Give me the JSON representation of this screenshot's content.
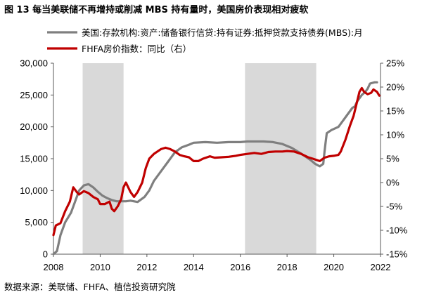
{
  "figure": {
    "title": "图 13 每当美联储不再增持或削减 MBS 持有量时，美国房价表现相对疲软",
    "source": "数据来源：美联储、FHFA、植信投资研究院"
  },
  "chart_data": {
    "type": "line",
    "legend": {
      "position": "top-left"
    },
    "grid": false,
    "x": {
      "type": "year",
      "range": [
        2008,
        2022
      ],
      "ticks": [
        "2008",
        "2010",
        "2012",
        "2014",
        "2016",
        "2018",
        "2020",
        "2022"
      ]
    },
    "y_left": {
      "range": [
        0,
        30000
      ],
      "ticks": [
        "0",
        "5,000",
        "10,000",
        "15,000",
        "20,000",
        "25,000",
        "30,000"
      ]
    },
    "y_right": {
      "range": [
        -15,
        25
      ],
      "ticks": [
        "-15%",
        "-10%",
        "-5%",
        "0%",
        "5%",
        "10%",
        "15%",
        "20%",
        "25%"
      ]
    },
    "shaded_periods": [
      [
        2009.25,
        2011.0
      ],
      [
        2016.2,
        2019.25
      ]
    ],
    "series": [
      {
        "name": "美国:存款机构:资产:储备银行信贷:持有证券:抵押贷款支持债券(MBS):月",
        "axis": "left",
        "color": "#7f7f7f",
        "points": [
          [
            2008.0,
            0
          ],
          [
            2008.15,
            500
          ],
          [
            2008.3,
            3000
          ],
          [
            2008.5,
            5000
          ],
          [
            2008.75,
            6500
          ],
          [
            2008.9,
            8000
          ],
          [
            2009.1,
            10000
          ],
          [
            2009.3,
            10800
          ],
          [
            2009.5,
            11000
          ],
          [
            2009.7,
            10500
          ],
          [
            2009.9,
            9800
          ],
          [
            2010.1,
            9200
          ],
          [
            2010.3,
            8800
          ],
          [
            2010.5,
            8500
          ],
          [
            2010.7,
            8300
          ],
          [
            2010.9,
            8300
          ],
          [
            2011.1,
            8300
          ],
          [
            2011.3,
            8400
          ],
          [
            2011.6,
            8200
          ],
          [
            2011.9,
            9000
          ],
          [
            2012.1,
            10000
          ],
          [
            2012.3,
            11500
          ],
          [
            2012.6,
            13000
          ],
          [
            2012.9,
            14500
          ],
          [
            2013.2,
            16000
          ],
          [
            2013.5,
            16800
          ],
          [
            2013.8,
            17200
          ],
          [
            2014.0,
            17500
          ],
          [
            2014.5,
            17600
          ],
          [
            2015.0,
            17500
          ],
          [
            2015.5,
            17600
          ],
          [
            2016.0,
            17600
          ],
          [
            2016.3,
            17700
          ],
          [
            2016.7,
            17700
          ],
          [
            2017.0,
            17700
          ],
          [
            2017.4,
            17600
          ],
          [
            2017.8,
            17300
          ],
          [
            2018.2,
            16700
          ],
          [
            2018.6,
            15800
          ],
          [
            2019.0,
            14800
          ],
          [
            2019.2,
            14200
          ],
          [
            2019.4,
            13800
          ],
          [
            2019.55,
            14200
          ],
          [
            2019.6,
            16000
          ],
          [
            2019.65,
            17500
          ],
          [
            2019.7,
            19000
          ],
          [
            2019.9,
            19500
          ],
          [
            2020.2,
            20000
          ],
          [
            2020.4,
            21000
          ],
          [
            2020.6,
            22000
          ],
          [
            2020.8,
            23000
          ],
          [
            2020.9,
            23200
          ],
          [
            2021.0,
            24000
          ],
          [
            2021.2,
            25000
          ],
          [
            2021.35,
            25500
          ],
          [
            2021.45,
            26000
          ],
          [
            2021.55,
            26800
          ],
          [
            2021.75,
            27000
          ],
          [
            2021.85,
            27000
          ]
        ]
      },
      {
        "name": "FHFA房价指数：同比（右）",
        "axis": "right",
        "color": "#c00000",
        "points": [
          [
            2008.0,
            -11
          ],
          [
            2008.1,
            -9
          ],
          [
            2008.3,
            -8.5
          ],
          [
            2008.5,
            -6
          ],
          [
            2008.7,
            -4
          ],
          [
            2008.85,
            -1
          ],
          [
            2009.0,
            -2
          ],
          [
            2009.1,
            -2.5
          ],
          [
            2009.3,
            -1.8
          ],
          [
            2009.5,
            -2.2
          ],
          [
            2009.7,
            -3
          ],
          [
            2009.9,
            -3.5
          ],
          [
            2010.0,
            -4.5
          ],
          [
            2010.2,
            -4.5
          ],
          [
            2010.4,
            -4
          ],
          [
            2010.5,
            -5.5
          ],
          [
            2010.6,
            -6
          ],
          [
            2010.75,
            -5
          ],
          [
            2010.9,
            -3.5
          ],
          [
            2011.0,
            -1
          ],
          [
            2011.1,
            0
          ],
          [
            2011.2,
            -1
          ],
          [
            2011.3,
            -2
          ],
          [
            2011.45,
            -3
          ],
          [
            2011.6,
            -2
          ],
          [
            2011.8,
            0
          ],
          [
            2011.95,
            3
          ],
          [
            2012.1,
            5
          ],
          [
            2012.3,
            6
          ],
          [
            2012.6,
            7
          ],
          [
            2012.8,
            7.3
          ],
          [
            2013.0,
            7
          ],
          [
            2013.2,
            6.5
          ],
          [
            2013.4,
            5.8
          ],
          [
            2013.6,
            5.5
          ],
          [
            2013.8,
            5.3
          ],
          [
            2014.0,
            4.5
          ],
          [
            2014.2,
            4.5
          ],
          [
            2014.4,
            5
          ],
          [
            2014.7,
            5.5
          ],
          [
            2014.9,
            5.2
          ],
          [
            2015.2,
            5.3
          ],
          [
            2015.5,
            5.4
          ],
          [
            2015.8,
            5.6
          ],
          [
            2016.0,
            5.8
          ],
          [
            2016.3,
            6
          ],
          [
            2016.6,
            6.2
          ],
          [
            2016.9,
            6
          ],
          [
            2017.2,
            6.4
          ],
          [
            2017.5,
            6.5
          ],
          [
            2017.8,
            6.5
          ],
          [
            2018.0,
            6.6
          ],
          [
            2018.3,
            6.5
          ],
          [
            2018.6,
            6
          ],
          [
            2018.9,
            5.3
          ],
          [
            2019.1,
            5
          ],
          [
            2019.4,
            4.5
          ],
          [
            2019.6,
            5.2
          ],
          [
            2019.8,
            5.5
          ],
          [
            2020.0,
            5.6
          ],
          [
            2020.2,
            5.8
          ],
          [
            2020.3,
            6.5
          ],
          [
            2020.5,
            9
          ],
          [
            2020.7,
            12
          ],
          [
            2020.85,
            14
          ],
          [
            2021.0,
            17
          ],
          [
            2021.1,
            19
          ],
          [
            2021.2,
            19.8
          ],
          [
            2021.3,
            19
          ],
          [
            2021.45,
            18.5
          ],
          [
            2021.6,
            18.8
          ],
          [
            2021.7,
            19.5
          ],
          [
            2021.85,
            19
          ],
          [
            2021.95,
            18.2
          ]
        ]
      }
    ]
  }
}
